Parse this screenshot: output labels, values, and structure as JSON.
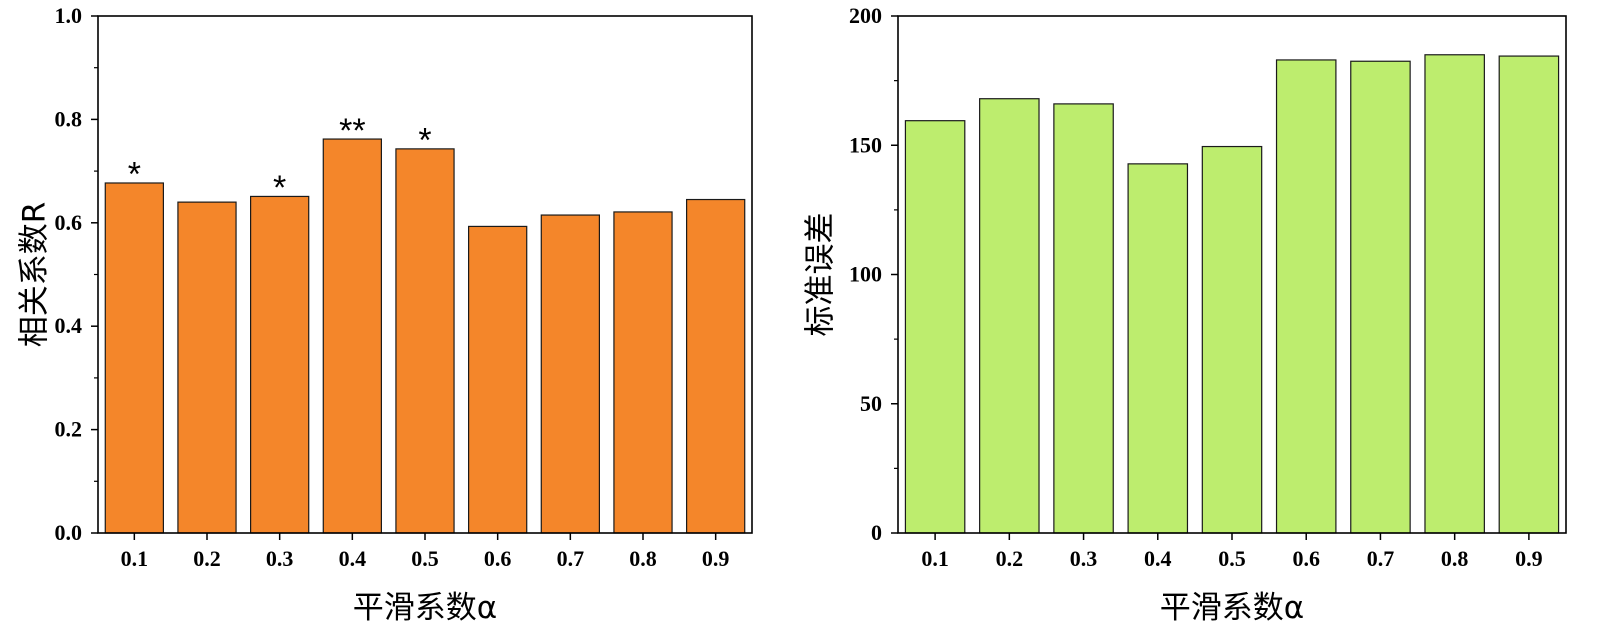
{
  "chart_data": [
    {
      "type": "bar",
      "categories": [
        "0.1",
        "0.2",
        "0.3",
        "0.4",
        "0.5",
        "0.6",
        "0.7",
        "0.8",
        "0.9"
      ],
      "values": [
        0.677,
        0.64,
        0.651,
        0.762,
        0.743,
        0.593,
        0.615,
        0.621,
        0.645
      ],
      "annotations": [
        "*",
        "",
        "*",
        "**",
        "*",
        "",
        "",
        "",
        ""
      ],
      "xlabel": "平滑系数α",
      "ylabel": "相关系数R",
      "ylim": [
        0,
        1.0
      ],
      "yticks": [
        "0.0",
        "0.2",
        "0.4",
        "0.6",
        "0.8",
        "1.0"
      ],
      "color": "#F4862A"
    },
    {
      "type": "bar",
      "categories": [
        "0.1",
        "0.2",
        "0.3",
        "0.4",
        "0.5",
        "0.6",
        "0.7",
        "0.8",
        "0.9"
      ],
      "values": [
        159.5,
        168,
        166,
        142.8,
        149.5,
        183,
        182.5,
        185,
        184.5
      ],
      "annotations": [
        "",
        "",
        "",
        "",
        "",
        "",
        "",
        "",
        ""
      ],
      "xlabel": "平滑系数α",
      "ylabel": "标准误差",
      "ylim": [
        0,
        200
      ],
      "yticks": [
        "0",
        "50",
        "100",
        "150",
        "200"
      ],
      "color": "#BDED6E"
    }
  ]
}
